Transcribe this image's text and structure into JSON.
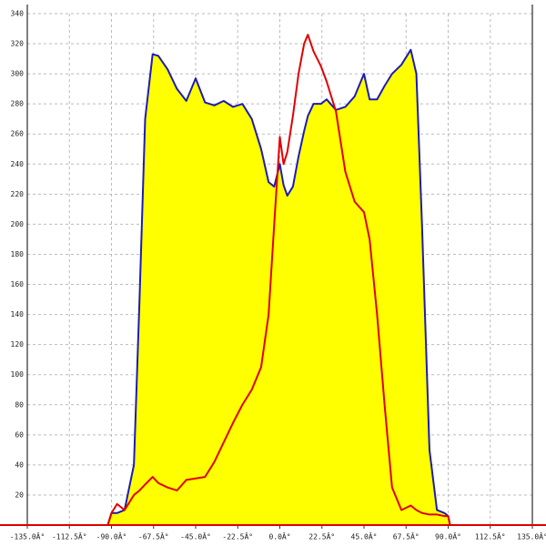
{
  "chart_data": {
    "type": "line",
    "x": [
      -92,
      -90,
      -87,
      -83,
      -78,
      -75,
      -72,
      -68,
      -65,
      -60,
      -55,
      -50,
      -45,
      -40,
      -35,
      -30,
      -25,
      -20,
      -15,
      -10,
      -6,
      -3,
      0,
      2,
      4,
      7,
      10,
      13,
      15,
      18,
      22,
      25,
      30,
      35,
      40,
      45,
      48,
      52,
      56,
      60,
      65,
      70,
      73,
      76,
      80,
      84,
      88,
      90,
      91
    ],
    "series": [
      {
        "color": "#1c1cb4",
        "fill": "#ffff00",
        "values": [
          0,
          8,
          8,
          10,
          40,
          150,
          270,
          313,
          312,
          303,
          290,
          282,
          297,
          281,
          279,
          282,
          278,
          280,
          270,
          250,
          228,
          225,
          240,
          226,
          219,
          225,
          245,
          262,
          272,
          280,
          280,
          283,
          276,
          278,
          285,
          300,
          283,
          283,
          292,
          300,
          306,
          316,
          300,
          200,
          50,
          10,
          8,
          6,
          0
        ]
      },
      {
        "color": "#e00000",
        "values": [
          0,
          8,
          14,
          10,
          20,
          23,
          27,
          32,
          28,
          25,
          23,
          30,
          31,
          32,
          42,
          55,
          68,
          80,
          90,
          105,
          140,
          200,
          258,
          240,
          248,
          272,
          300,
          320,
          326,
          315,
          305,
          295,
          275,
          235,
          215,
          208,
          190,
          140,
          80,
          25,
          10,
          13,
          10,
          8,
          7,
          7,
          6,
          6,
          0
        ]
      }
    ],
    "xlim": [
      -135,
      135
    ],
    "xticks": [
      {
        "value": -135,
        "label": "-135.0Â°"
      },
      {
        "value": -112.5,
        "label": "-112.5Â°"
      },
      {
        "value": -90,
        "label": "-90.0Â°"
      },
      {
        "value": -67.5,
        "label": "-67.5Â°"
      },
      {
        "value": -45,
        "label": "-45.0Â°"
      },
      {
        "value": -22.5,
        "label": "-22.5Â°"
      },
      {
        "value": 0,
        "label": "0.0Â°"
      },
      {
        "value": 22.5,
        "label": "22.5Â°"
      },
      {
        "value": 45,
        "label": "45.0Â°"
      },
      {
        "value": 67.5,
        "label": "67.5Â°"
      },
      {
        "value": 90,
        "label": "90.0Â°"
      },
      {
        "value": 112.5,
        "label": "112.5Â°"
      },
      {
        "value": 135,
        "label": "135.0Â°"
      }
    ],
    "ylim": [
      0,
      340
    ],
    "yticks": [
      20,
      40,
      60,
      80,
      100,
      120,
      140,
      160,
      180,
      200,
      220,
      240,
      260,
      280,
      300,
      320,
      340
    ],
    "grid": true
  }
}
